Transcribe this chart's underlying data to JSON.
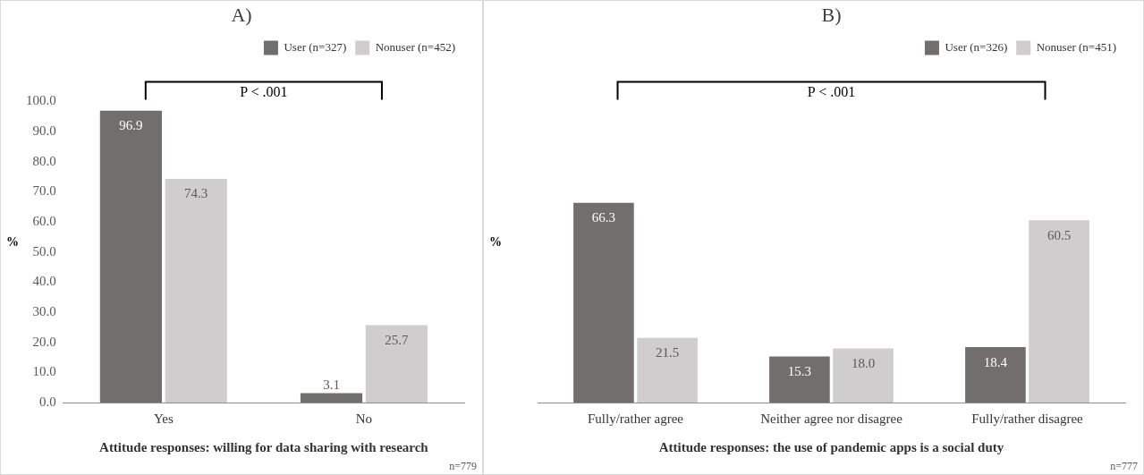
{
  "chart_data": [
    {
      "type": "bar",
      "title": "A)",
      "xlabel": "Attitude responses: willing for data sharing with research",
      "ylabel": "%",
      "categories": [
        "Yes",
        "No"
      ],
      "series": [
        {
          "name": "User (n=327)",
          "color": "#736e6e",
          "values": [
            96.9,
            3.1
          ],
          "value_labels": [
            "96.9",
            "3.1"
          ]
        },
        {
          "name": "Nonuser (n=452)",
          "color": "#cfcdce",
          "values": [
            74.3,
            25.7
          ],
          "value_labels": [
            "74.3",
            "25.7"
          ]
        }
      ],
      "ylim": [
        0,
        100
      ],
      "yticks": [
        {
          "value": 0,
          "label": "0.0"
        },
        {
          "value": 10,
          "label": "10.0"
        },
        {
          "value": 20,
          "label": "20.0"
        },
        {
          "value": 30,
          "label": "30.0"
        },
        {
          "value": 40,
          "label": "40.0"
        },
        {
          "value": 50,
          "label": "50.0"
        },
        {
          "value": 60,
          "label": "60.0"
        },
        {
          "value": 70,
          "label": "70.0"
        },
        {
          "value": 80,
          "label": "80.0"
        },
        {
          "value": 90,
          "label": "90.0"
        },
        {
          "value": 100,
          "label": "100.0"
        }
      ],
      "legend": "top right",
      "grid": false,
      "annotations": [
        "P < .001",
        "n=779"
      ]
    },
    {
      "type": "bar",
      "title": "B)",
      "xlabel": "Attitude responses: the use of pandemic apps is a social duty",
      "ylabel": "%",
      "categories": [
        "Fully/rather agree",
        "Neither agree nor disagree",
        "Fully/rather disagree"
      ],
      "series": [
        {
          "name": "User (n=326)",
          "color": "#736e6e",
          "values": [
            66.3,
            15.3,
            18.4
          ],
          "value_labels": [
            "66.3",
            "15.3",
            "18.4"
          ]
        },
        {
          "name": "Nonuser (n=451)",
          "color": "#cfcdce",
          "values": [
            21.5,
            18.0,
            60.5
          ],
          "value_labels": [
            "21.5",
            "18.0",
            "60.5"
          ]
        }
      ],
      "ylim": [
        0,
        100
      ],
      "tick_labels": "x",
      "legend": "top right",
      "grid": false,
      "annotations": [
        "P < .001",
        "n=777"
      ]
    }
  ]
}
